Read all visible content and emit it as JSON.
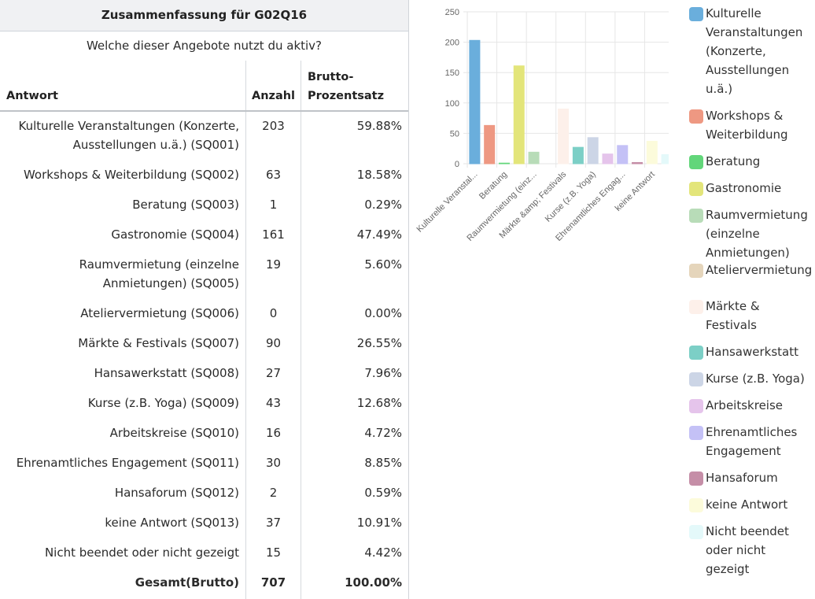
{
  "table": {
    "title": "Zusammenfassung für G02Q16",
    "question": "Welche dieser Angebote nutzt du aktiv?",
    "headers": {
      "answer": "Antwort",
      "count": "Anzahl",
      "percent_line1": "Brutto-",
      "percent_line2": "Prozentsatz"
    },
    "rows": [
      {
        "line1": "Kulturelle Veranstaltungen (Konzerte,",
        "line2": "Ausstellungen u.ä.) (SQ001)",
        "count": "203",
        "percent": "59.88%"
      },
      {
        "line1": "Workshops & Weiterbildung (SQ002)",
        "line2": "",
        "count": "63",
        "percent": "18.58%"
      },
      {
        "line1": "Beratung (SQ003)",
        "line2": "",
        "count": "1",
        "percent": "0.29%"
      },
      {
        "line1": "Gastronomie (SQ004)",
        "line2": "",
        "count": "161",
        "percent": "47.49%"
      },
      {
        "line1": "Raumvermietung (einzelne",
        "line2": "Anmietungen) (SQ005)",
        "count": "19",
        "percent": "5.60%"
      },
      {
        "line1": "Ateliervermietung (SQ006)",
        "line2": "",
        "count": "0",
        "percent": "0.00%"
      },
      {
        "line1": "Märkte & Festivals (SQ007)",
        "line2": "",
        "count": "90",
        "percent": "26.55%"
      },
      {
        "line1": "Hansawerkstatt (SQ008)",
        "line2": "",
        "count": "27",
        "percent": "7.96%"
      },
      {
        "line1": "Kurse (z.B. Yoga) (SQ009)",
        "line2": "",
        "count": "43",
        "percent": "12.68%"
      },
      {
        "line1": "Arbeitskreise (SQ010)",
        "line2": "",
        "count": "16",
        "percent": "4.72%"
      },
      {
        "line1": "Ehrenamtliches Engagement (SQ011)",
        "line2": "",
        "count": "30",
        "percent": "8.85%"
      },
      {
        "line1": "Hansaforum (SQ012)",
        "line2": "",
        "count": "2",
        "percent": "0.59%"
      },
      {
        "line1": "keine Antwort (SQ013)",
        "line2": "",
        "count": "37",
        "percent": "10.91%"
      },
      {
        "line1": "Nicht beendet oder nicht gezeigt",
        "line2": "",
        "count": "15",
        "percent": "4.42%"
      }
    ],
    "total": {
      "label": "Gesamt(Brutto)",
      "count": "707",
      "percent": "100.00%"
    }
  },
  "chart_data": {
    "type": "bar",
    "categories": [
      "Kulturelle Veranstal...",
      "Workshops & Weiterbildung",
      "Beratung",
      "Gastronomie",
      "Raumvermietung (einz...",
      "Ateliervermietung",
      "Märkte &amp; Festivals",
      "Hansawerkstatt",
      "Kurse (z.B. Yoga)",
      "Arbeitskreise",
      "Ehrenamtliches Engag...",
      "Hansaforum",
      "keine Antwort",
      "Nicht beendet oder nicht gezeigt"
    ],
    "x_labels": [
      "Kulturelle Veranstal...",
      "",
      "Beratung",
      "",
      "Raumvermietung (einz...",
      "",
      "Märkte &amp; Festivals",
      "",
      "Kurse (z.B. Yoga)",
      "",
      "Ehrenamtliches Engag...",
      "",
      "keine Antwort",
      ""
    ],
    "values": [
      203,
      63,
      1,
      161,
      19,
      0,
      90,
      27,
      43,
      16,
      30,
      2,
      37,
      15
    ],
    "colors": [
      "#6aaedc",
      "#ee9882",
      "#62d67a",
      "#e3e57a",
      "#b8dcb8",
      "#e5d5bb",
      "#fdf0ea",
      "#7ccfc6",
      "#ccd5e6",
      "#e5c4eb",
      "#c4c1f6",
      "#c58ea7",
      "#fcfbdb",
      "#e4f9fa"
    ],
    "ylim": [
      0,
      250
    ],
    "yticks": [
      0,
      50,
      100,
      150,
      200,
      250
    ],
    "grid": true,
    "legend": {
      "position": "right",
      "items": [
        {
          "lines": [
            "Kulturelle",
            "Veranstaltungen",
            "(Konzerte,",
            "Ausstellungen",
            "u.ä.)"
          ],
          "color": "#6aaedc"
        },
        {
          "lines": [
            "Workshops &",
            "Weiterbildung"
          ],
          "color": "#ee9882"
        },
        {
          "lines": [
            "Beratung"
          ],
          "color": "#62d67a"
        },
        {
          "lines": [
            "Gastronomie"
          ],
          "color": "#e3e57a"
        },
        {
          "lines": [
            "Raumvermietung",
            "(einzelne",
            "Anmietungen)"
          ],
          "color": "#b8dcb8"
        },
        {
          "lines": [
            "Ateliervermietung"
          ],
          "color": "#e5d5bb"
        },
        {
          "lines": [
            "Märkte &",
            "Festivals"
          ],
          "color": "#fdf0ea"
        },
        {
          "lines": [
            "Hansawerkstatt"
          ],
          "color": "#7ccfc6"
        },
        {
          "lines": [
            "Kurse (z.B. Yoga)"
          ],
          "color": "#ccd5e6"
        },
        {
          "lines": [
            "Arbeitskreise"
          ],
          "color": "#e5c4eb"
        },
        {
          "lines": [
            "Ehrenamtliches",
            "Engagement"
          ],
          "color": "#c4c1f6"
        },
        {
          "lines": [
            "Hansaforum"
          ],
          "color": "#c58ea7"
        },
        {
          "lines": [
            "keine Antwort"
          ],
          "color": "#fcfbdb"
        },
        {
          "lines": [
            "Nicht beendet",
            "oder nicht",
            "gezeigt"
          ],
          "color": "#e4f9fa"
        }
      ]
    }
  }
}
